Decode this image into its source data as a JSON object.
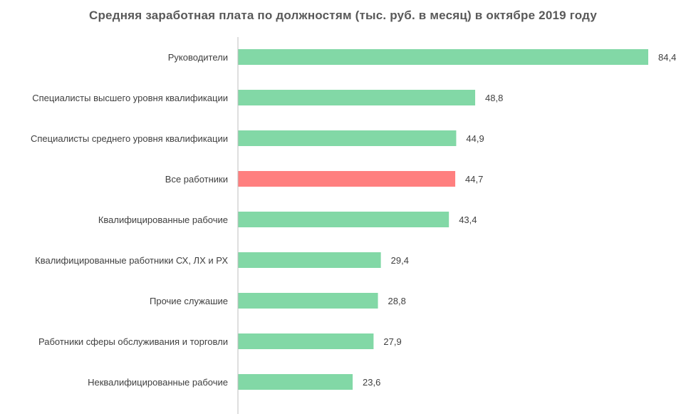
{
  "chart_data": {
    "type": "bar",
    "orientation": "horizontal",
    "title": "Средняя заработная  плата по должностям  (тыс. руб. в месяц) в октябре  2019 году",
    "categories": [
      "Руководители",
      "Специалисты высшего уровня квалификации",
      "Специалисты среднего уровня квалификации",
      "Все работники",
      "Квалифицированные рабочие",
      "Квалифицированные работники СХ, ЛХ и РХ",
      "Прочие служашие",
      "Работники сферы обслуживания и торговли",
      "Неквалифицированные рабочие"
    ],
    "values": [
      84.4,
      48.8,
      44.9,
      44.7,
      43.4,
      29.4,
      28.8,
      27.9,
      23.6
    ],
    "value_labels": [
      "84,4",
      "48,8",
      "44,9",
      "44,7",
      "43,4",
      "29,4",
      "28,8",
      "27,9",
      "23,6"
    ],
    "highlight_category": "Все работники",
    "xlim": [
      0,
      90
    ],
    "grid": false,
    "legend": "none",
    "colors": {
      "bar": "#82d8a6",
      "highlight": "#ff7f7f",
      "axis": "#bfbfbf"
    }
  }
}
